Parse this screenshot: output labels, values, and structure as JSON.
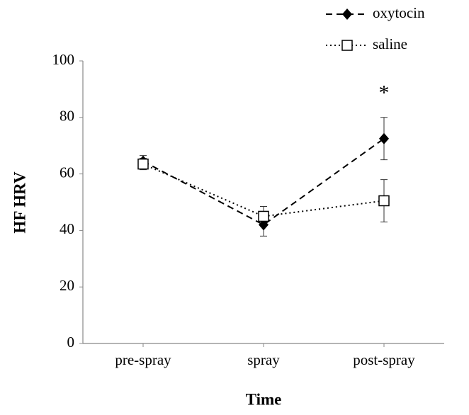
{
  "chart_data": {
    "type": "line",
    "categories": [
      "pre-spray",
      "spray",
      "post-spray"
    ],
    "series": [
      {
        "name": "oxytocin",
        "color": "#000000",
        "values": [
          64.5,
          42,
          72.5
        ],
        "errors": [
          2,
          4,
          7.5
        ]
      },
      {
        "name": "saline",
        "color": "#000000",
        "values": [
          63.5,
          45,
          50.5
        ],
        "errors": [
          2,
          3.5,
          7.5
        ]
      }
    ],
    "ylim": [
      0,
      100
    ],
    "yticks": [
      0,
      20,
      40,
      60,
      80,
      100
    ],
    "ylabel": "HF HRV",
    "xlabel": "Time",
    "annotation": "*"
  }
}
